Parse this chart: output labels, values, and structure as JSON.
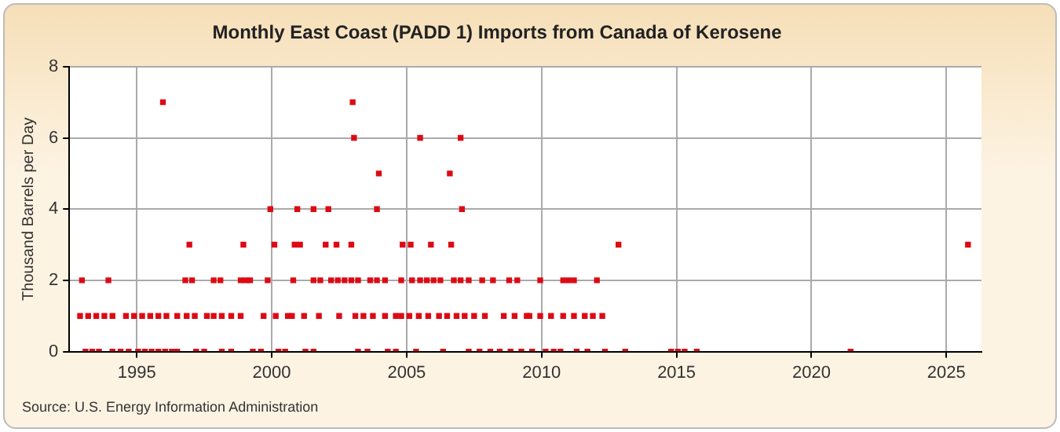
{
  "chart_data": {
    "type": "scatter",
    "title": "Monthly East Coast (PADD 1) Imports from Canada of Kerosene",
    "ylabel": "Thousand Barrels per Day",
    "annotations": [
      "Source: U.S. Energy Information Administration"
    ],
    "xlim": [
      1992.5,
      2026.3
    ],
    "xticks": [
      1995,
      2000,
      2005,
      2010,
      2015,
      2020,
      2025
    ],
    "ylim": [
      0,
      8
    ],
    "yticks": [
      0,
      2,
      4,
      6,
      8
    ],
    "grid": true,
    "marker": "square",
    "legend": false,
    "series": [
      {
        "color": "#dd0a14",
        "x": [
          1993.1,
          1993.35,
          1993.6,
          1994.1,
          1994.4,
          1994.7,
          1995.05,
          1995.3,
          1995.55,
          1995.8,
          1996.05,
          1996.3,
          1996.5,
          1997.2,
          1997.5,
          1998.15,
          1998.5,
          1999.3,
          1999.6,
          2000.25,
          2000.5,
          2001.25,
          2001.55,
          2003.2,
          2003.55,
          2004.3,
          2004.6,
          2005.35,
          2006.35,
          2007.3,
          2007.7,
          2008.1,
          2008.45,
          2008.85,
          2009.25,
          2009.65,
          2010.15,
          2010.45,
          2010.7,
          2011.3,
          2011.7,
          2012.35,
          2013.1,
          2014.8,
          2015.05,
          2015.3,
          2015.75,
          2021.45,
          1992.9,
          1993.2,
          1993.5,
          1993.8,
          1994.1,
          1994.6,
          1994.9,
          1995.2,
          1995.5,
          1995.8,
          1996.1,
          1996.5,
          1996.85,
          1997.15,
          1997.6,
          1997.85,
          1998.15,
          1998.5,
          1998.85,
          1999.7,
          2000.15,
          2000.6,
          2000.75,
          2001.2,
          2001.75,
          2002.5,
          2003.1,
          2003.4,
          2003.75,
          2004.2,
          2004.6,
          2004.8,
          2005.1,
          2005.45,
          2005.8,
          2006.2,
          2006.5,
          2006.85,
          2007.15,
          2007.5,
          2007.9,
          2008.6,
          2009.0,
          2009.45,
          2009.55,
          2009.95,
          2010.35,
          2010.8,
          2011.2,
          2011.6,
          2011.9,
          2012.25,
          1992.97,
          1993.95,
          1996.8,
          1997.05,
          1997.85,
          1998.1,
          1998.85,
          1999.05,
          1999.2,
          1999.85,
          2000.8,
          2001.55,
          2001.8,
          2002.2,
          2002.45,
          2002.7,
          2002.95,
          2003.2,
          2003.65,
          2003.9,
          2004.2,
          2004.8,
          2005.2,
          2005.5,
          2005.75,
          2006.0,
          2006.25,
          2006.75,
          2007.0,
          2007.3,
          2007.8,
          2008.2,
          2008.8,
          2009.1,
          2009.95,
          2010.8,
          2011.0,
          2011.2,
          2012.05,
          1996.95,
          1998.95,
          2000.1,
          2000.85,
          2001.05,
          2002.0,
          2002.4,
          2002.95,
          2004.85,
          2005.15,
          2005.9,
          2006.65,
          2012.85,
          2025.8,
          1999.95,
          2000.95,
          2001.55,
          2002.1,
          2003.9,
          2007.05,
          2003.97,
          2006.6,
          2003.05,
          2005.5,
          2007.0,
          1995.97,
          2003.0
        ],
        "values": [
          0,
          0,
          0,
          0,
          0,
          0,
          0,
          0,
          0,
          0,
          0,
          0,
          0,
          0,
          0,
          0,
          0,
          0,
          0,
          0,
          0,
          0,
          0,
          0,
          0,
          0,
          0,
          0,
          0,
          0,
          0,
          0,
          0,
          0,
          0,
          0,
          0,
          0,
          0,
          0,
          0,
          0,
          0,
          0,
          0,
          0,
          0,
          0,
          1,
          1,
          1,
          1,
          1,
          1,
          1,
          1,
          1,
          1,
          1,
          1,
          1,
          1,
          1,
          1,
          1,
          1,
          1,
          1,
          1,
          1,
          1,
          1,
          1,
          1,
          1,
          1,
          1,
          1,
          1,
          1,
          1,
          1,
          1,
          1,
          1,
          1,
          1,
          1,
          1,
          1,
          1,
          1,
          1,
          1,
          1,
          1,
          1,
          1,
          1,
          1,
          2,
          2,
          2,
          2,
          2,
          2,
          2,
          2,
          2,
          2,
          2,
          2,
          2,
          2,
          2,
          2,
          2,
          2,
          2,
          2,
          2,
          2,
          2,
          2,
          2,
          2,
          2,
          2,
          2,
          2,
          2,
          2,
          2,
          2,
          2,
          2,
          2,
          2,
          2,
          3,
          3,
          3,
          3,
          3,
          3,
          3,
          3,
          3,
          3,
          3,
          3,
          3,
          3,
          4,
          4,
          4,
          4,
          4,
          4,
          5,
          5,
          6,
          6,
          6,
          7,
          7
        ]
      }
    ]
  }
}
